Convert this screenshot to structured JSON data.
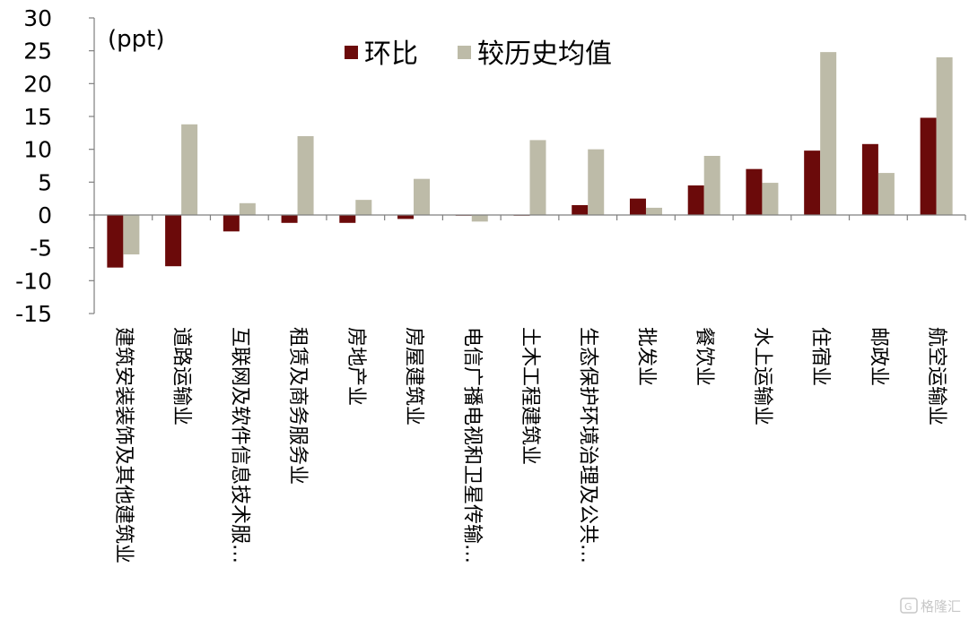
{
  "chart_data": {
    "type": "bar",
    "unit_label": "(ppt)",
    "ylim": [
      -15,
      30
    ],
    "yticks": [
      30,
      25,
      20,
      15,
      10,
      5,
      0,
      -5,
      -10,
      -15
    ],
    "legend_position": "top",
    "grid": false,
    "categories": [
      "建筑安装装饰及其他建筑业",
      "道路运输业",
      "互联网及软件信息技术服…",
      "租赁及商务服务业",
      "房地产业",
      "房屋建筑业",
      "电信广播电视和卫星传输…",
      "土木工程建筑业",
      "生态保护环境治理及公共…",
      "批发业",
      "餐饮业",
      "水上运输业",
      "住宿业",
      "邮政业",
      "航空运输业"
    ],
    "series": [
      {
        "name": "环比",
        "color": "#6B0A0A",
        "values": [
          -8,
          -7.8,
          -2.5,
          -1.2,
          -1.2,
          -0.6,
          -0.1,
          -0.1,
          1.5,
          2.5,
          4.5,
          7,
          9.8,
          10.8,
          14.8
        ]
      },
      {
        "name": "较历史均值",
        "color": "#BDBBA8",
        "values": [
          -6,
          13.8,
          1.8,
          12,
          2.3,
          5.5,
          -1,
          11.4,
          10,
          1.1,
          9,
          4.9,
          24.8,
          6.4,
          24
        ]
      }
    ]
  },
  "watermark": "格隆汇"
}
